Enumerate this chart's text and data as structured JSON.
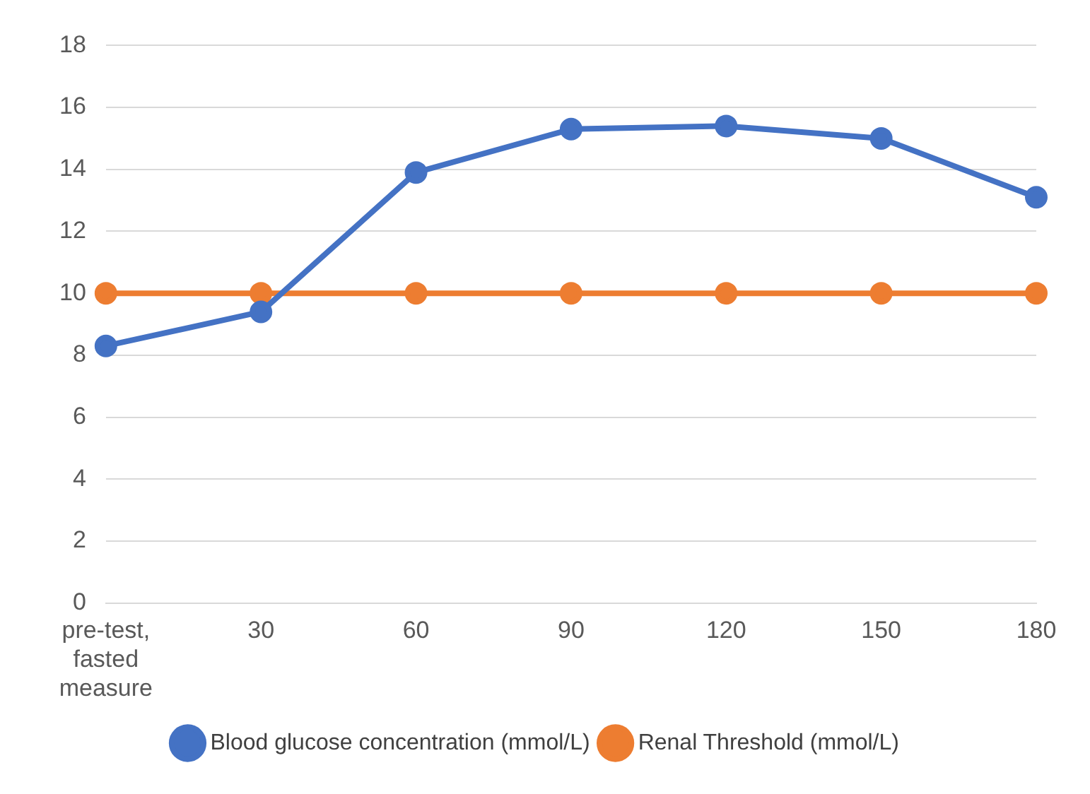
{
  "chart_data": {
    "type": "line",
    "categories": [
      "pre-test, fasted measure",
      "30",
      "60",
      "90",
      "120",
      "150",
      "180"
    ],
    "series": [
      {
        "name": "Blood glucose concentration (mmol/L)",
        "color": "#4472c4",
        "values": [
          8.3,
          9.4,
          13.9,
          15.3,
          15.4,
          15.0,
          13.1
        ]
      },
      {
        "name": "Renal Threshold (mmol/L)",
        "color": "#ed7d31",
        "values": [
          10,
          10,
          10,
          10,
          10,
          10,
          10
        ]
      }
    ],
    "ylim": [
      0,
      18
    ],
    "yticks": [
      0,
      2,
      4,
      6,
      8,
      10,
      12,
      14,
      16,
      18
    ],
    "grid": "y",
    "legend": "bottom",
    "marker": "circle",
    "line_style": "solid"
  }
}
